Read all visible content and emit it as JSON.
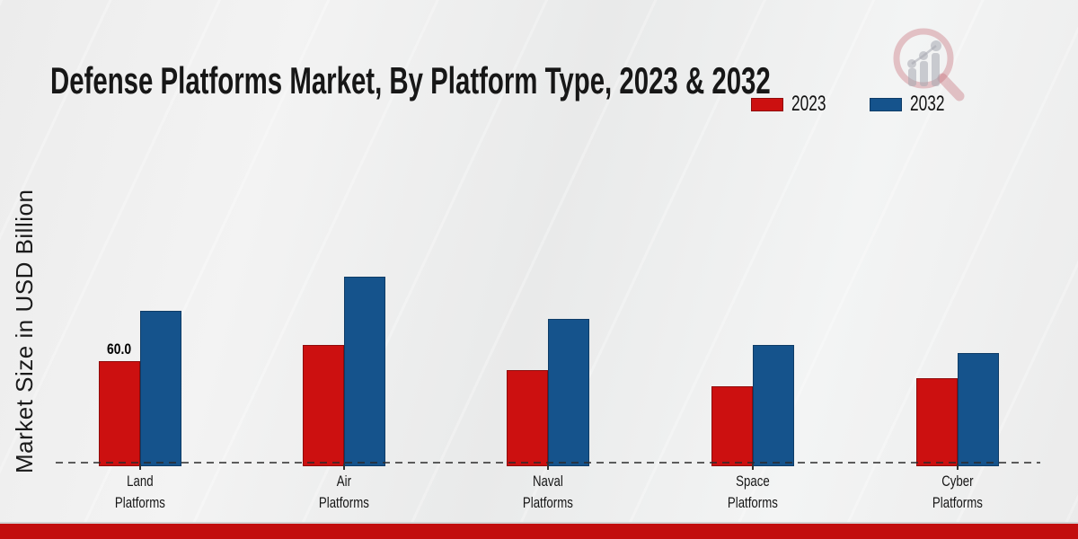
{
  "title": "Defense Platforms Market, By Platform Type, 2023 & 2032",
  "y_axis_label": "Market Size in USD Billion",
  "legend": {
    "items": [
      {
        "label": "2023",
        "color": "#cc1010",
        "border": "#8f0b0b"
      },
      {
        "label": "2032",
        "color": "#15538c",
        "border": "#0e3c67"
      }
    ]
  },
  "footer_color": "#c20d0d",
  "logo": "magnifier-bar-chart-watermark",
  "chart_data": {
    "type": "bar",
    "title": "Defense Platforms Market, By Platform Type, 2023 & 2032",
    "categories": [
      "Land Platforms",
      "Air Platforms",
      "Naval Platforms",
      "Space Platforms",
      "Cyber Platforms"
    ],
    "series": [
      {
        "name": "2023",
        "color": "#cc1010",
        "border": "#8f0b0b",
        "values": [
          60.0,
          70,
          55,
          45,
          50
        ]
      },
      {
        "name": "2032",
        "color": "#15538c",
        "border": "#0e3c67",
        "values": [
          90,
          110,
          85,
          70,
          65
        ]
      }
    ],
    "data_labels": [
      {
        "series_index": 0,
        "category_index": 0,
        "text": "60.0"
      }
    ],
    "xlabel": "",
    "ylabel": "Market Size in USD Billion",
    "ylim": [
      0,
      120
    ],
    "grid": false,
    "y_ticks_visible": false,
    "legend_position": "upper-right",
    "baseline_style": "dashed"
  }
}
